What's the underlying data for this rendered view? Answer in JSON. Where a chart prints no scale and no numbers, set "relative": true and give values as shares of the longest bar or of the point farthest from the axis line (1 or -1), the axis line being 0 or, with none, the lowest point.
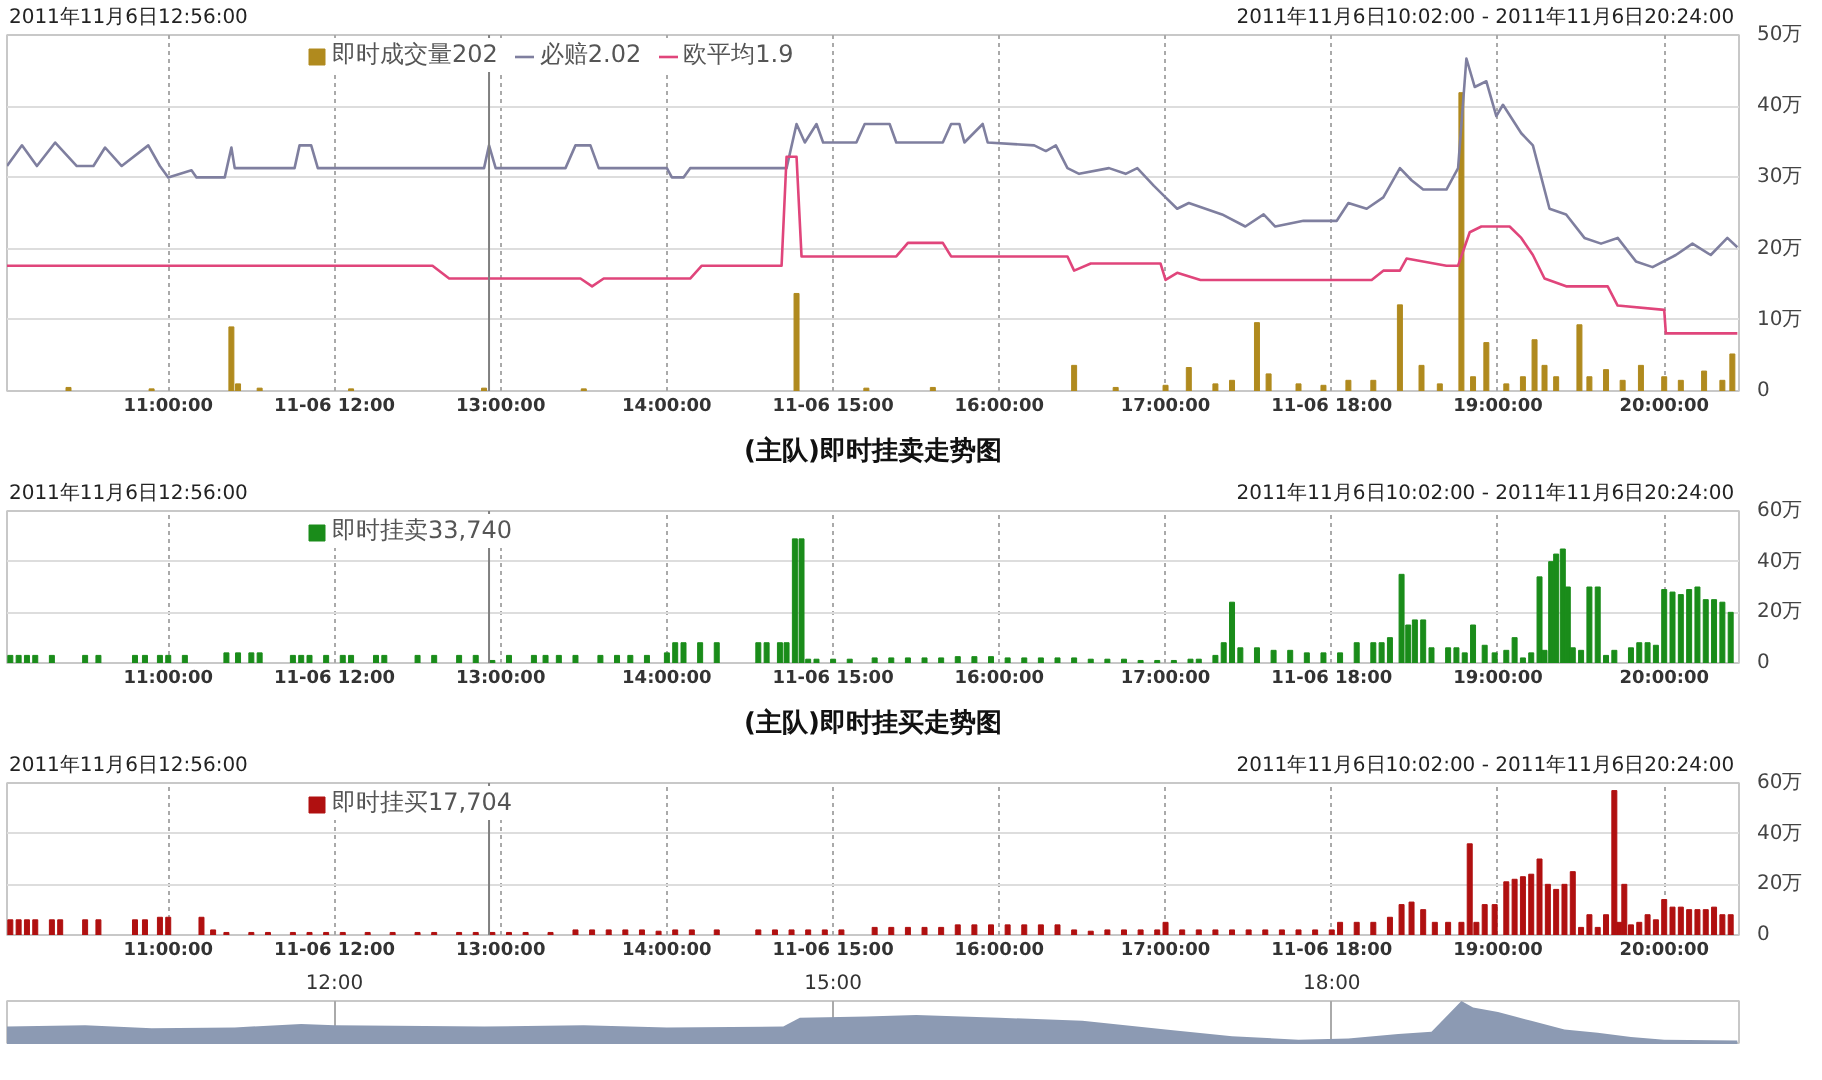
{
  "chart_data": [
    {
      "type": "bar",
      "annotations": [
        "2011年11月6日12:56:00",
        "2011年11月6日10:02:00 - 2011年11月6日20:24:00"
      ],
      "xlim": [
        10.03,
        20.45
      ],
      "xticks": [
        {
          "value": 11,
          "label": "11:00:00"
        },
        {
          "value": 12,
          "label": "11-06 12:00"
        },
        {
          "value": 13,
          "label": "13:00:00"
        },
        {
          "value": 14,
          "label": "14:00:00"
        },
        {
          "value": 15,
          "label": "11-06 15:00"
        },
        {
          "value": 16,
          "label": "16:00:00"
        },
        {
          "value": 17,
          "label": "17:00:00"
        },
        {
          "value": 18,
          "label": "11-06 18:00"
        },
        {
          "value": 19,
          "label": "19:00:00"
        },
        {
          "value": 20,
          "label": "20:00:00"
        }
      ],
      "ylim": [
        0,
        50
      ],
      "yticks": [
        0,
        {
          "value": 10,
          "label": "10万"
        },
        {
          "value": 20,
          "label": "20万"
        },
        {
          "value": 30,
          "label": "30万"
        },
        {
          "value": 40,
          "label": "40万"
        },
        {
          "value": 50,
          "label": "50万"
        }
      ],
      "grid": true,
      "legend": "top",
      "ref_lines": [
        {
          "axis": "x",
          "value": 12.93,
          "label": null,
          "color": "#808080"
        }
      ],
      "series": [
        {
          "name": "即时成交量202",
          "color": "#b08a1e",
          "x": [
            10.4,
            10.9,
            11.38,
            11.42,
            11.55,
            12.1,
            12.9,
            13.5,
            14.78,
            15.2,
            15.6,
            16.45,
            16.7,
            17.0,
            17.14,
            17.3,
            17.4,
            17.55,
            17.62,
            17.8,
            17.95,
            18.1,
            18.25,
            18.41,
            18.54,
            18.65,
            18.78,
            18.85,
            18.93,
            19.05,
            19.15,
            19.22,
            19.28,
            19.35,
            19.49,
            19.55,
            19.65,
            19.75,
            19.86,
            20.0,
            20.1,
            20.24,
            20.35,
            20.41
          ],
          "values": [
            0.5,
            0.3,
            9.0,
            1,
            0.4,
            0.3,
            0.4,
            0.3,
            13.7,
            0.4,
            0.5,
            3.6,
            0.5,
            0.8,
            3.3,
            1,
            1.5,
            9.6,
            2.4,
            1,
            0.8,
            1.5,
            1.5,
            12.1,
            3.6,
            1,
            41.9,
            2,
            6.8,
            1,
            2,
            7.2,
            3.6,
            2,
            9.3,
            2,
            3,
            1.5,
            3.6,
            2,
            1.5,
            2.8,
            1.5,
            5.2
          ]
        },
        {
          "name": "必赔2.02",
          "type": "line",
          "color": "#7f7f9f",
          "x": [
            10.03,
            10.12,
            10.21,
            10.32,
            10.45,
            10.55,
            10.62,
            10.72,
            10.88,
            10.95,
            11.0,
            11.14,
            11.17,
            11.34,
            11.38,
            11.4,
            11.76,
            11.79,
            11.86,
            11.9,
            12.9,
            12.93,
            12.97,
            13.39,
            13.45,
            13.54,
            13.59,
            14.0,
            14.03,
            14.1,
            14.14,
            14.72,
            14.78,
            14.83,
            14.9,
            14.94,
            15.14,
            15.19,
            15.34,
            15.38,
            15.66,
            15.71,
            15.76,
            15.79,
            15.9,
            15.93,
            16.21,
            16.28,
            16.34,
            16.41,
            16.48,
            16.66,
            16.76,
            16.83,
            16.93,
            17.0,
            17.07,
            17.14,
            17.24,
            17.34,
            17.48,
            17.59,
            17.66,
            17.83,
            18.03,
            18.1,
            18.21,
            18.31,
            18.41,
            18.48,
            18.55,
            18.69,
            18.76,
            18.81,
            18.86,
            18.93,
            18.99,
            19.03,
            19.14,
            19.21,
            19.31,
            19.41,
            19.52,
            19.62,
            19.72,
            19.83,
            19.93,
            20.07,
            20.17,
            20.28,
            20.38,
            20.44
          ],
          "values": [
            31.6,
            34.5,
            31.6,
            34.9,
            31.6,
            31.6,
            34.2,
            31.6,
            34.5,
            31.6,
            30,
            31,
            30,
            30,
            34.2,
            31.3,
            31.3,
            34.5,
            34.5,
            31.3,
            31.3,
            34.5,
            31.3,
            31.3,
            34.5,
            34.5,
            31.3,
            31.3,
            30,
            30,
            31.3,
            31.3,
            37.5,
            34.9,
            37.5,
            34.9,
            34.9,
            37.5,
            37.5,
            34.9,
            34.9,
            37.5,
            37.5,
            34.9,
            37.5,
            34.9,
            34.5,
            33.7,
            34.5,
            31.3,
            30.5,
            31.3,
            30.5,
            31.3,
            28.8,
            27.2,
            25.6,
            26.4,
            25.6,
            24.8,
            23.1,
            24.8,
            23.1,
            23.9,
            23.9,
            26.4,
            25.6,
            27.2,
            31.3,
            29.6,
            28.3,
            28.3,
            31.3,
            46.7,
            42.7,
            43.5,
            38.6,
            40.2,
            36.2,
            34.5,
            25.6,
            24.8,
            21.5,
            20.7,
            21.5,
            18.2,
            17.4,
            19.1,
            20.7,
            19.1,
            21.5,
            20.2
          ]
        },
        {
          "name": "欧平均1.9",
          "type": "line",
          "color": "#e0457b",
          "x": [
            10.03,
            12.59,
            12.69,
            13.48,
            13.55,
            13.62,
            14.14,
            14.21,
            14.69,
            14.72,
            14.78,
            14.81,
            15.38,
            15.45,
            15.66,
            15.71,
            16.41,
            16.45,
            16.55,
            16.97,
            17.0,
            17.07,
            17.21,
            18.24,
            18.31,
            18.41,
            18.45,
            18.69,
            18.76,
            18.83,
            18.9,
            19.07,
            19.14,
            19.21,
            19.28,
            19.41,
            19.66,
            19.72,
            20.0,
            20.01,
            20.44
          ],
          "values": [
            17.6,
            17.6,
            15.8,
            15.8,
            14.7,
            15.8,
            15.8,
            17.6,
            17.6,
            32.9,
            32.9,
            18.9,
            18.9,
            20.8,
            20.8,
            18.9,
            18.9,
            16.9,
            17.9,
            17.9,
            15.6,
            16.6,
            15.6,
            15.6,
            16.9,
            16.9,
            18.6,
            17.6,
            17.6,
            22.3,
            23.1,
            23.1,
            21.5,
            19.1,
            15.8,
            14.7,
            14.7,
            12,
            11.4,
            8.1,
            8.1
          ]
        }
      ]
    },
    {
      "type": "bar",
      "title": "(主队)即时挂卖走势图",
      "annotations": [
        "2011年11月6日12:56:00",
        "2011年11月6日10:02:00 - 2011年11月6日20:24:00"
      ],
      "xlim": [
        10.03,
        20.45
      ],
      "xticks": [
        {
          "value": 11,
          "label": "11:00:00"
        },
        {
          "value": 12,
          "label": "11-06 12:00"
        },
        {
          "value": 13,
          "label": "13:00:00"
        },
        {
          "value": 14,
          "label": "14:00:00"
        },
        {
          "value": 15,
          "label": "11-06 15:00"
        },
        {
          "value": 16,
          "label": "16:00:00"
        },
        {
          "value": 17,
          "label": "17:00:00"
        },
        {
          "value": 18,
          "label": "11-06 18:00"
        },
        {
          "value": 19,
          "label": "19:00:00"
        },
        {
          "value": 20,
          "label": "20:00:00"
        }
      ],
      "ylim": [
        0,
        60
      ],
      "yticks": [
        0,
        {
          "value": 20,
          "label": "20万"
        },
        {
          "value": 40,
          "label": "40万"
        },
        {
          "value": 60,
          "label": "60万"
        }
      ],
      "grid": true,
      "legend": "top",
      "ref_lines": [
        {
          "axis": "x",
          "value": 12.93,
          "label": null,
          "color": "#808080"
        }
      ],
      "series": [
        {
          "name": "即时挂卖33,740",
          "color": "#1a8c1a",
          "x": [
            10.05,
            10.1,
            10.15,
            10.2,
            10.3,
            10.5,
            10.58,
            10.8,
            10.86,
            10.95,
            11.0,
            11.1,
            11.35,
            11.42,
            11.5,
            11.55,
            11.75,
            11.8,
            11.85,
            11.95,
            12.05,
            12.1,
            12.25,
            12.3,
            12.5,
            12.6,
            12.75,
            12.85,
            12.95,
            13.05,
            13.2,
            13.27,
            13.35,
            13.45,
            13.6,
            13.7,
            13.78,
            13.88,
            14.0,
            14.05,
            14.1,
            14.2,
            14.3,
            14.55,
            14.6,
            14.68,
            14.72,
            14.77,
            14.81,
            14.85,
            14.9,
            15.0,
            15.1,
            15.25,
            15.35,
            15.45,
            15.55,
            15.65,
            15.75,
            15.85,
            15.95,
            16.05,
            16.15,
            16.25,
            16.35,
            16.45,
            16.55,
            16.65,
            16.75,
            16.85,
            16.95,
            17.05,
            17.15,
            17.2,
            17.3,
            17.35,
            17.4,
            17.45,
            17.55,
            17.65,
            17.75,
            17.85,
            17.95,
            18.05,
            18.15,
            18.25,
            18.3,
            18.35,
            18.42,
            18.46,
            18.5,
            18.55,
            18.6,
            18.7,
            18.75,
            18.8,
            18.85,
            18.92,
            18.98,
            19.05,
            19.1,
            19.15,
            19.2,
            19.25,
            19.28,
            19.32,
            19.35,
            19.39,
            19.42,
            19.45,
            19.5,
            19.55,
            19.6,
            19.65,
            19.7,
            19.8,
            19.85,
            19.9,
            19.95,
            20.0,
            20.05,
            20.1,
            20.15,
            20.2,
            20.25,
            20.3,
            20.35,
            20.4
          ],
          "values": [
            3,
            3,
            3,
            3,
            3,
            3,
            3,
            3,
            3,
            3,
            3,
            3,
            4,
            4,
            4,
            4,
            3,
            3,
            3,
            3,
            3,
            3,
            3,
            3,
            3,
            3,
            3,
            3,
            1,
            3,
            3,
            3,
            3,
            3,
            3,
            3,
            3,
            3,
            4,
            8,
            8,
            8,
            8,
            8,
            8,
            8,
            8,
            49,
            49,
            1.5,
            1.5,
            1.5,
            1.5,
            2,
            2,
            2,
            2,
            2,
            2.5,
            2.5,
            2.5,
            2,
            2,
            2,
            2,
            2,
            1.5,
            1.5,
            1.5,
            1,
            1,
            1,
            1.5,
            1.5,
            3,
            8,
            24,
            6,
            6,
            5,
            5,
            4,
            4,
            4,
            8,
            8,
            8,
            10,
            35,
            15,
            17,
            17,
            6,
            6,
            6,
            4,
            15,
            7,
            4,
            5,
            10,
            2,
            4,
            34,
            5,
            40,
            43,
            45,
            30,
            6,
            5,
            30,
            30,
            3,
            5,
            6,
            8,
            8,
            7,
            29,
            28,
            27,
            29,
            30,
            25,
            25,
            24,
            20
          ]
        }
      ]
    },
    {
      "type": "bar",
      "title": "(主队)即时挂买走势图",
      "annotations": [
        "2011年11月6日12:56:00",
        "2011年11月6日10:02:00 - 2011年11月6日20:24:00"
      ],
      "xlim": [
        10.03,
        20.45
      ],
      "xticks": [
        {
          "value": 11,
          "label": "11:00:00"
        },
        {
          "value": 12,
          "label": "11-06 12:00"
        },
        {
          "value": 13,
          "label": "13:00:00"
        },
        {
          "value": 14,
          "label": "14:00:00"
        },
        {
          "value": 15,
          "label": "11-06 15:00"
        },
        {
          "value": 16,
          "label": "16:00:00"
        },
        {
          "value": 17,
          "label": "17:00:00"
        },
        {
          "value": 18,
          "label": "11-06 18:00"
        },
        {
          "value": 19,
          "label": "19:00:00"
        },
        {
          "value": 20,
          "label": "20:00:00"
        }
      ],
      "ylim": [
        0,
        60
      ],
      "yticks": [
        0,
        {
          "value": 20,
          "label": "20万"
        },
        {
          "value": 40,
          "label": "40万"
        },
        {
          "value": 60,
          "label": "60万"
        }
      ],
      "grid": true,
      "legend": "top",
      "ref_lines": [
        {
          "axis": "x",
          "value": 12.93,
          "label": null,
          "color": "#808080"
        }
      ],
      "series": [
        {
          "name": "即时挂买17,704",
          "color": "#b01010",
          "x": [
            10.05,
            10.1,
            10.15,
            10.2,
            10.3,
            10.35,
            10.5,
            10.58,
            10.8,
            10.86,
            10.95,
            11.0,
            11.2,
            11.27,
            11.35,
            11.5,
            11.6,
            11.75,
            11.85,
            11.95,
            12.05,
            12.2,
            12.35,
            12.5,
            12.6,
            12.75,
            12.85,
            12.95,
            13.05,
            13.15,
            13.3,
            13.45,
            13.55,
            13.65,
            13.75,
            13.85,
            13.95,
            14.05,
            14.15,
            14.3,
            14.55,
            14.65,
            14.75,
            14.85,
            14.95,
            15.05,
            15.25,
            15.35,
            15.45,
            15.55,
            15.65,
            15.75,
            15.85,
            15.95,
            16.05,
            16.15,
            16.25,
            16.35,
            16.45,
            16.55,
            16.65,
            16.75,
            16.85,
            16.95,
            17.0,
            17.1,
            17.2,
            17.3,
            17.4,
            17.5,
            17.6,
            17.7,
            17.8,
            17.9,
            18.0,
            18.05,
            18.15,
            18.25,
            18.35,
            18.42,
            18.48,
            18.55,
            18.62,
            18.7,
            18.78,
            18.83,
            18.87,
            18.92,
            18.98,
            19.05,
            19.1,
            19.15,
            19.2,
            19.25,
            19.3,
            19.35,
            19.4,
            19.45,
            19.5,
            19.55,
            19.6,
            19.65,
            19.7,
            19.73,
            19.76,
            19.8,
            19.85,
            19.9,
            19.95,
            20.0,
            20.05,
            20.1,
            20.15,
            20.2,
            20.25,
            20.3,
            20.35,
            20.4
          ],
          "values": [
            6,
            6,
            6,
            6,
            6,
            6,
            6,
            6,
            6,
            6,
            7,
            7,
            7,
            2,
            1,
            1,
            1,
            1,
            1,
            1,
            1,
            1,
            1,
            1,
            1,
            1,
            1,
            1,
            1,
            1,
            1,
            2,
            2,
            2,
            2,
            2,
            1.5,
            2,
            2,
            2,
            2,
            2,
            2,
            2,
            2,
            2,
            3,
            3,
            3,
            3,
            3,
            4,
            4,
            4,
            4,
            4,
            4,
            4,
            2,
            1.5,
            2,
            2,
            2,
            2,
            5,
            2,
            2,
            2,
            2,
            2,
            2,
            2,
            2,
            2,
            2,
            5,
            5,
            5,
            7,
            12,
            13,
            10,
            5,
            5,
            5,
            36,
            5,
            12,
            12,
            21,
            22,
            23,
            24,
            30,
            20,
            18,
            20,
            25,
            3,
            8,
            3,
            8,
            57,
            5,
            20,
            4,
            5,
            8,
            6,
            14,
            11,
            11,
            10,
            10,
            10,
            11,
            8,
            8
          ]
        }
      ]
    },
    {
      "type": "area",
      "relative": true,
      "tick_labels": "x",
      "grid": "x",
      "xlim": [
        10.03,
        20.45
      ],
      "xticks": [
        {
          "value": 12,
          "label": "12:00"
        },
        {
          "value": 15,
          "label": "15:00"
        },
        {
          "value": 18,
          "label": "18:00"
        }
      ],
      "series": [
        {
          "color": "#8c9ab3",
          "x": [
            10.03,
            10.5,
            10.9,
            11.4,
            11.8,
            12.0,
            12.9,
            13.5,
            14.0,
            14.7,
            14.8,
            15.2,
            15.5,
            16.0,
            16.5,
            17.0,
            17.4,
            17.8,
            18.1,
            18.4,
            18.6,
            18.78,
            18.85,
            19.0,
            19.2,
            19.4,
            19.6,
            19.8,
            20.0,
            20.44
          ],
          "values": [
            0.42,
            0.45,
            0.38,
            0.4,
            0.48,
            0.45,
            0.42,
            0.45,
            0.4,
            0.42,
            0.62,
            0.65,
            0.68,
            0.62,
            0.55,
            0.35,
            0.2,
            0.12,
            0.15,
            0.25,
            0.3,
            1.0,
            0.85,
            0.75,
            0.55,
            0.35,
            0.28,
            0.18,
            0.12,
            0.1
          ]
        }
      ]
    }
  ]
}
